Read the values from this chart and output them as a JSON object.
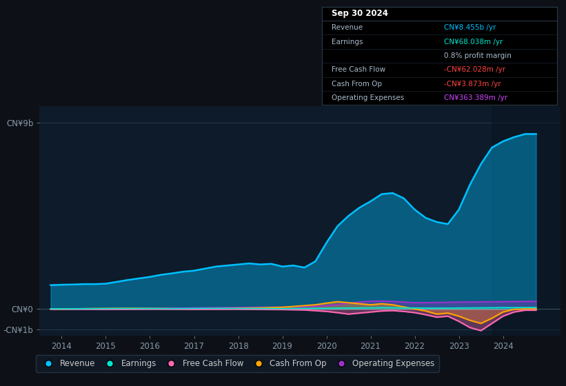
{
  "bg_color": "#0d1117",
  "plot_bg_color": "#0d1b2a",
  "yticks_labels": [
    "CN¥9b",
    "CN¥0",
    "-CN¥1b"
  ],
  "ytick_values": [
    9000000000,
    0,
    -1000000000
  ],
  "xticks": [
    "2014",
    "2015",
    "2016",
    "2017",
    "2018",
    "2019",
    "2020",
    "2021",
    "2022",
    "2023",
    "2024"
  ],
  "ylim": [
    -1300000000,
    9800000000
  ],
  "xlim": [
    2013.5,
    2025.3
  ],
  "highlight_start": 2023.75,
  "legend": [
    {
      "label": "Revenue",
      "color": "#00bfff"
    },
    {
      "label": "Earnings",
      "color": "#00e5cc"
    },
    {
      "label": "Free Cash Flow",
      "color": "#ff69b4"
    },
    {
      "label": "Cash From Op",
      "color": "#ffa500"
    },
    {
      "label": "Operating Expenses",
      "color": "#9932cc"
    }
  ],
  "tooltip": {
    "title": "Sep 30 2024",
    "rows": [
      {
        "label": "Revenue",
        "value": "CN¥8.455b /yr",
        "lcolor": "#aabbcc",
        "vcolor": "#00bfff"
      },
      {
        "label": "Earnings",
        "value": "CN¥68.038m /yr",
        "lcolor": "#aabbcc",
        "vcolor": "#00e5cc"
      },
      {
        "label": "",
        "value": "0.8% profit margin",
        "lcolor": "#aabbcc",
        "vcolor": "#aabbcc"
      },
      {
        "label": "Free Cash Flow",
        "value": "-CN¥62.028m /yr",
        "lcolor": "#aabbcc",
        "vcolor": "#ff4444"
      },
      {
        "label": "Cash From Op",
        "value": "-CN¥3.873m /yr",
        "lcolor": "#aabbcc",
        "vcolor": "#ff4444"
      },
      {
        "label": "Operating Expenses",
        "value": "CN¥363.389m /yr",
        "lcolor": "#aabbcc",
        "vcolor": "#cc44ff"
      }
    ]
  },
  "series": {
    "Revenue": {
      "color": "#00bfff",
      "x": [
        2013.75,
        2014.0,
        2014.25,
        2014.5,
        2014.75,
        2015.0,
        2015.5,
        2016.0,
        2016.25,
        2016.5,
        2016.75,
        2017.0,
        2017.25,
        2017.5,
        2017.75,
        2018.0,
        2018.25,
        2018.5,
        2018.75,
        2019.0,
        2019.25,
        2019.5,
        2019.75,
        2020.0,
        2020.25,
        2020.5,
        2020.75,
        2021.0,
        2021.25,
        2021.5,
        2021.75,
        2022.0,
        2022.25,
        2022.5,
        2022.75,
        2023.0,
        2023.25,
        2023.5,
        2023.75,
        2024.0,
        2024.25,
        2024.5,
        2024.75
      ],
      "y": [
        1150000000.0,
        1170000000.0,
        1180000000.0,
        1200000000.0,
        1200000000.0,
        1220000000.0,
        1400000000.0,
        1550000000.0,
        1650000000.0,
        1720000000.0,
        1800000000.0,
        1850000000.0,
        1950000000.0,
        2050000000.0,
        2100000000.0,
        2150000000.0,
        2200000000.0,
        2150000000.0,
        2180000000.0,
        2050000000.0,
        2100000000.0,
        2000000000.0,
        2300000000.0,
        3200000000.0,
        4000000000.0,
        4500000000.0,
        4900000000.0,
        5200000000.0,
        5550000000.0,
        5600000000.0,
        5350000000.0,
        4800000000.0,
        4400000000.0,
        4200000000.0,
        4100000000.0,
        4800000000.0,
        6000000000.0,
        7000000000.0,
        7800000000.0,
        8100000000.0,
        8300000000.0,
        8455000000.0,
        8455000000.0
      ]
    },
    "Earnings": {
      "color": "#00e5cc",
      "x": [
        2013.75,
        2014.0,
        2014.5,
        2015.0,
        2015.5,
        2016.0,
        2016.5,
        2017.0,
        2017.5,
        2018.0,
        2018.5,
        2019.0,
        2019.5,
        2020.0,
        2020.5,
        2021.0,
        2021.25,
        2021.5,
        2021.75,
        2022.0,
        2022.5,
        2023.0,
        2023.5,
        2024.0,
        2024.5,
        2024.75
      ],
      "y": [
        5000000.0,
        5000000.0,
        10000000.0,
        15000000.0,
        20000000.0,
        20000000.0,
        15000000.0,
        25000000.0,
        30000000.0,
        25000000.0,
        20000000.0,
        15000000.0,
        25000000.0,
        35000000.0,
        45000000.0,
        55000000.0,
        65000000.0,
        60000000.0,
        50000000.0,
        45000000.0,
        40000000.0,
        45000000.0,
        55000000.0,
        65000000.0,
        68000000.0,
        68000000.0
      ]
    },
    "FreeCashFlow": {
      "color": "#ff69b4",
      "x": [
        2013.75,
        2014.0,
        2014.5,
        2015.0,
        2015.5,
        2016.0,
        2016.5,
        2017.0,
        2017.5,
        2018.0,
        2018.5,
        2019.0,
        2019.5,
        2020.0,
        2020.25,
        2020.5,
        2020.75,
        2021.0,
        2021.25,
        2021.5,
        2021.75,
        2022.0,
        2022.25,
        2022.5,
        2022.75,
        2023.0,
        2023.25,
        2023.5,
        2023.75,
        2024.0,
        2024.25,
        2024.5,
        2024.75
      ],
      "y": [
        -15000000.0,
        -15000000.0,
        -20000000.0,
        -25000000.0,
        -20000000.0,
        -10000000.0,
        -15000000.0,
        -20000000.0,
        -15000000.0,
        -15000000.0,
        -25000000.0,
        -30000000.0,
        -50000000.0,
        -120000000.0,
        -180000000.0,
        -250000000.0,
        -200000000.0,
        -150000000.0,
        -100000000.0,
        -80000000.0,
        -120000000.0,
        -180000000.0,
        -280000000.0,
        -400000000.0,
        -350000000.0,
        -600000000.0,
        -900000000.0,
        -1050000000.0,
        -700000000.0,
        -350000000.0,
        -150000000.0,
        -62000000.0,
        -62000000.0
      ]
    },
    "CashFromOp": {
      "color": "#ffa500",
      "x": [
        2013.75,
        2014.0,
        2014.5,
        2015.0,
        2015.5,
        2016.0,
        2016.5,
        2017.0,
        2017.5,
        2018.0,
        2018.5,
        2019.0,
        2019.25,
        2019.5,
        2019.75,
        2020.0,
        2020.25,
        2020.5,
        2020.75,
        2021.0,
        2021.25,
        2021.5,
        2021.75,
        2022.0,
        2022.25,
        2022.5,
        2022.75,
        2023.0,
        2023.25,
        2023.5,
        2023.75,
        2024.0,
        2024.25,
        2024.5,
        2024.75
      ],
      "y": [
        -10000000.0,
        -10000000.0,
        10000000.0,
        20000000.0,
        30000000.0,
        20000000.0,
        10000000.0,
        0,
        10000000.0,
        30000000.0,
        50000000.0,
        80000000.0,
        120000000.0,
        160000000.0,
        200000000.0,
        280000000.0,
        350000000.0,
        300000000.0,
        250000000.0,
        200000000.0,
        250000000.0,
        200000000.0,
        100000000.0,
        0,
        -100000000.0,
        -250000000.0,
        -200000000.0,
        -350000000.0,
        -550000000.0,
        -700000000.0,
        -450000000.0,
        -150000000.0,
        -20000000.0,
        -3873000.0,
        -3873000.0
      ]
    },
    "OperatingExpenses": {
      "color": "#9932cc",
      "x": [
        2013.75,
        2014.0,
        2014.5,
        2015.0,
        2015.5,
        2016.0,
        2016.5,
        2017.0,
        2017.5,
        2018.0,
        2018.5,
        2019.0,
        2019.5,
        2020.0,
        2020.25,
        2020.5,
        2020.75,
        2021.0,
        2021.25,
        2021.5,
        2021.75,
        2022.0,
        2022.5,
        2023.0,
        2023.5,
        2024.0,
        2024.5,
        2024.75
      ],
      "y": [
        5000000.0,
        5000000.0,
        10000000.0,
        15000000.0,
        20000000.0,
        30000000.0,
        40000000.0,
        50000000.0,
        60000000.0,
        70000000.0,
        80000000.0,
        90000000.0,
        110000000.0,
        160000000.0,
        220000000.0,
        280000000.0,
        330000000.0,
        370000000.0,
        380000000.0,
        360000000.0,
        330000000.0,
        300000000.0,
        310000000.0,
        330000000.0,
        340000000.0,
        350000000.0,
        363389000.0,
        363389000.0
      ]
    }
  }
}
